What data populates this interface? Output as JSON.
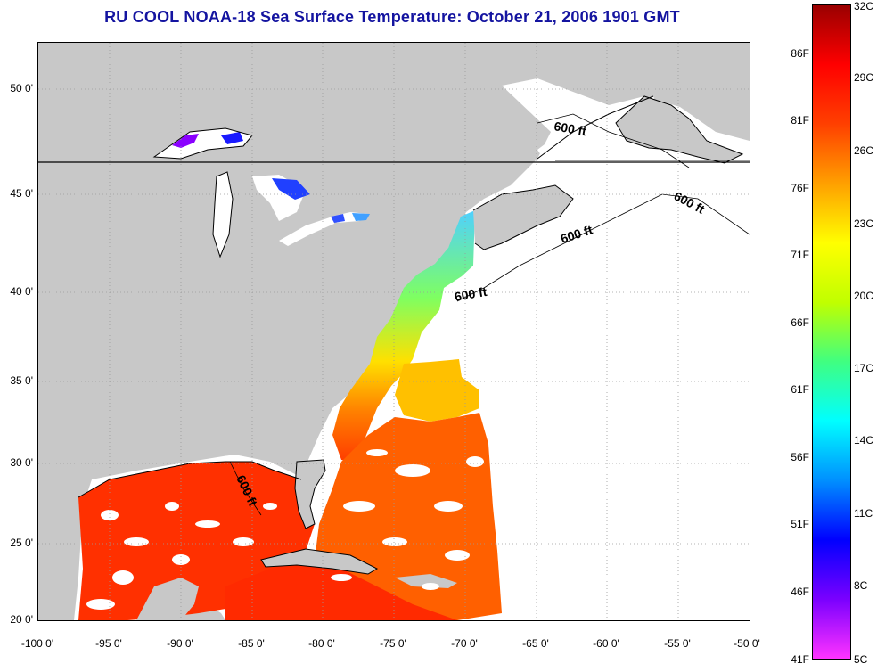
{
  "title": "RU COOL  NOAA-18  Sea Surface Temperature:  October 21, 2006 1901 GMT",
  "map": {
    "lat_labels": [
      "50 0'",
      "45 0'",
      "40 0'",
      "35 0'",
      "30 0'",
      "25 0'",
      "20 0'"
    ],
    "lon_labels": [
      "-100 0'",
      "-95 0'",
      "-90 0'",
      "-85 0'",
      "-80 0'",
      "-75 0'",
      "-70 0'",
      "-65 0'",
      "-60 0'",
      "-55 0'",
      "-50 0'"
    ],
    "lat_range": [
      20,
      52.5
    ],
    "lon_range": [
      -100,
      -50
    ],
    "contour_labels": [
      "600 ft",
      "600 ft",
      "600 ft",
      "600 ft",
      "600 ft"
    ],
    "colors": {
      "land": "#c8c8c8",
      "no_data": "#ffffff",
      "grid": "#9a9a9a"
    }
  },
  "colorbar": {
    "celsius_labels": [
      "32C",
      "29C",
      "26C",
      "23C",
      "20C",
      "17C",
      "14C",
      "11C",
      "8C",
      "5C"
    ],
    "fahrenheit_labels": [
      "86F",
      "81F",
      "76F",
      "71F",
      "66F",
      "61F",
      "56F",
      "51F",
      "46F",
      "41F"
    ],
    "range_c": [
      5,
      32
    ],
    "colors": [
      "#ff33ff",
      "#7a00ff",
      "#0000ff",
      "#0090ff",
      "#00ffff",
      "#40ff80",
      "#c0ff00",
      "#ffff00",
      "#ffa000",
      "#ff4000",
      "#ff0000",
      "#9a0000"
    ]
  }
}
